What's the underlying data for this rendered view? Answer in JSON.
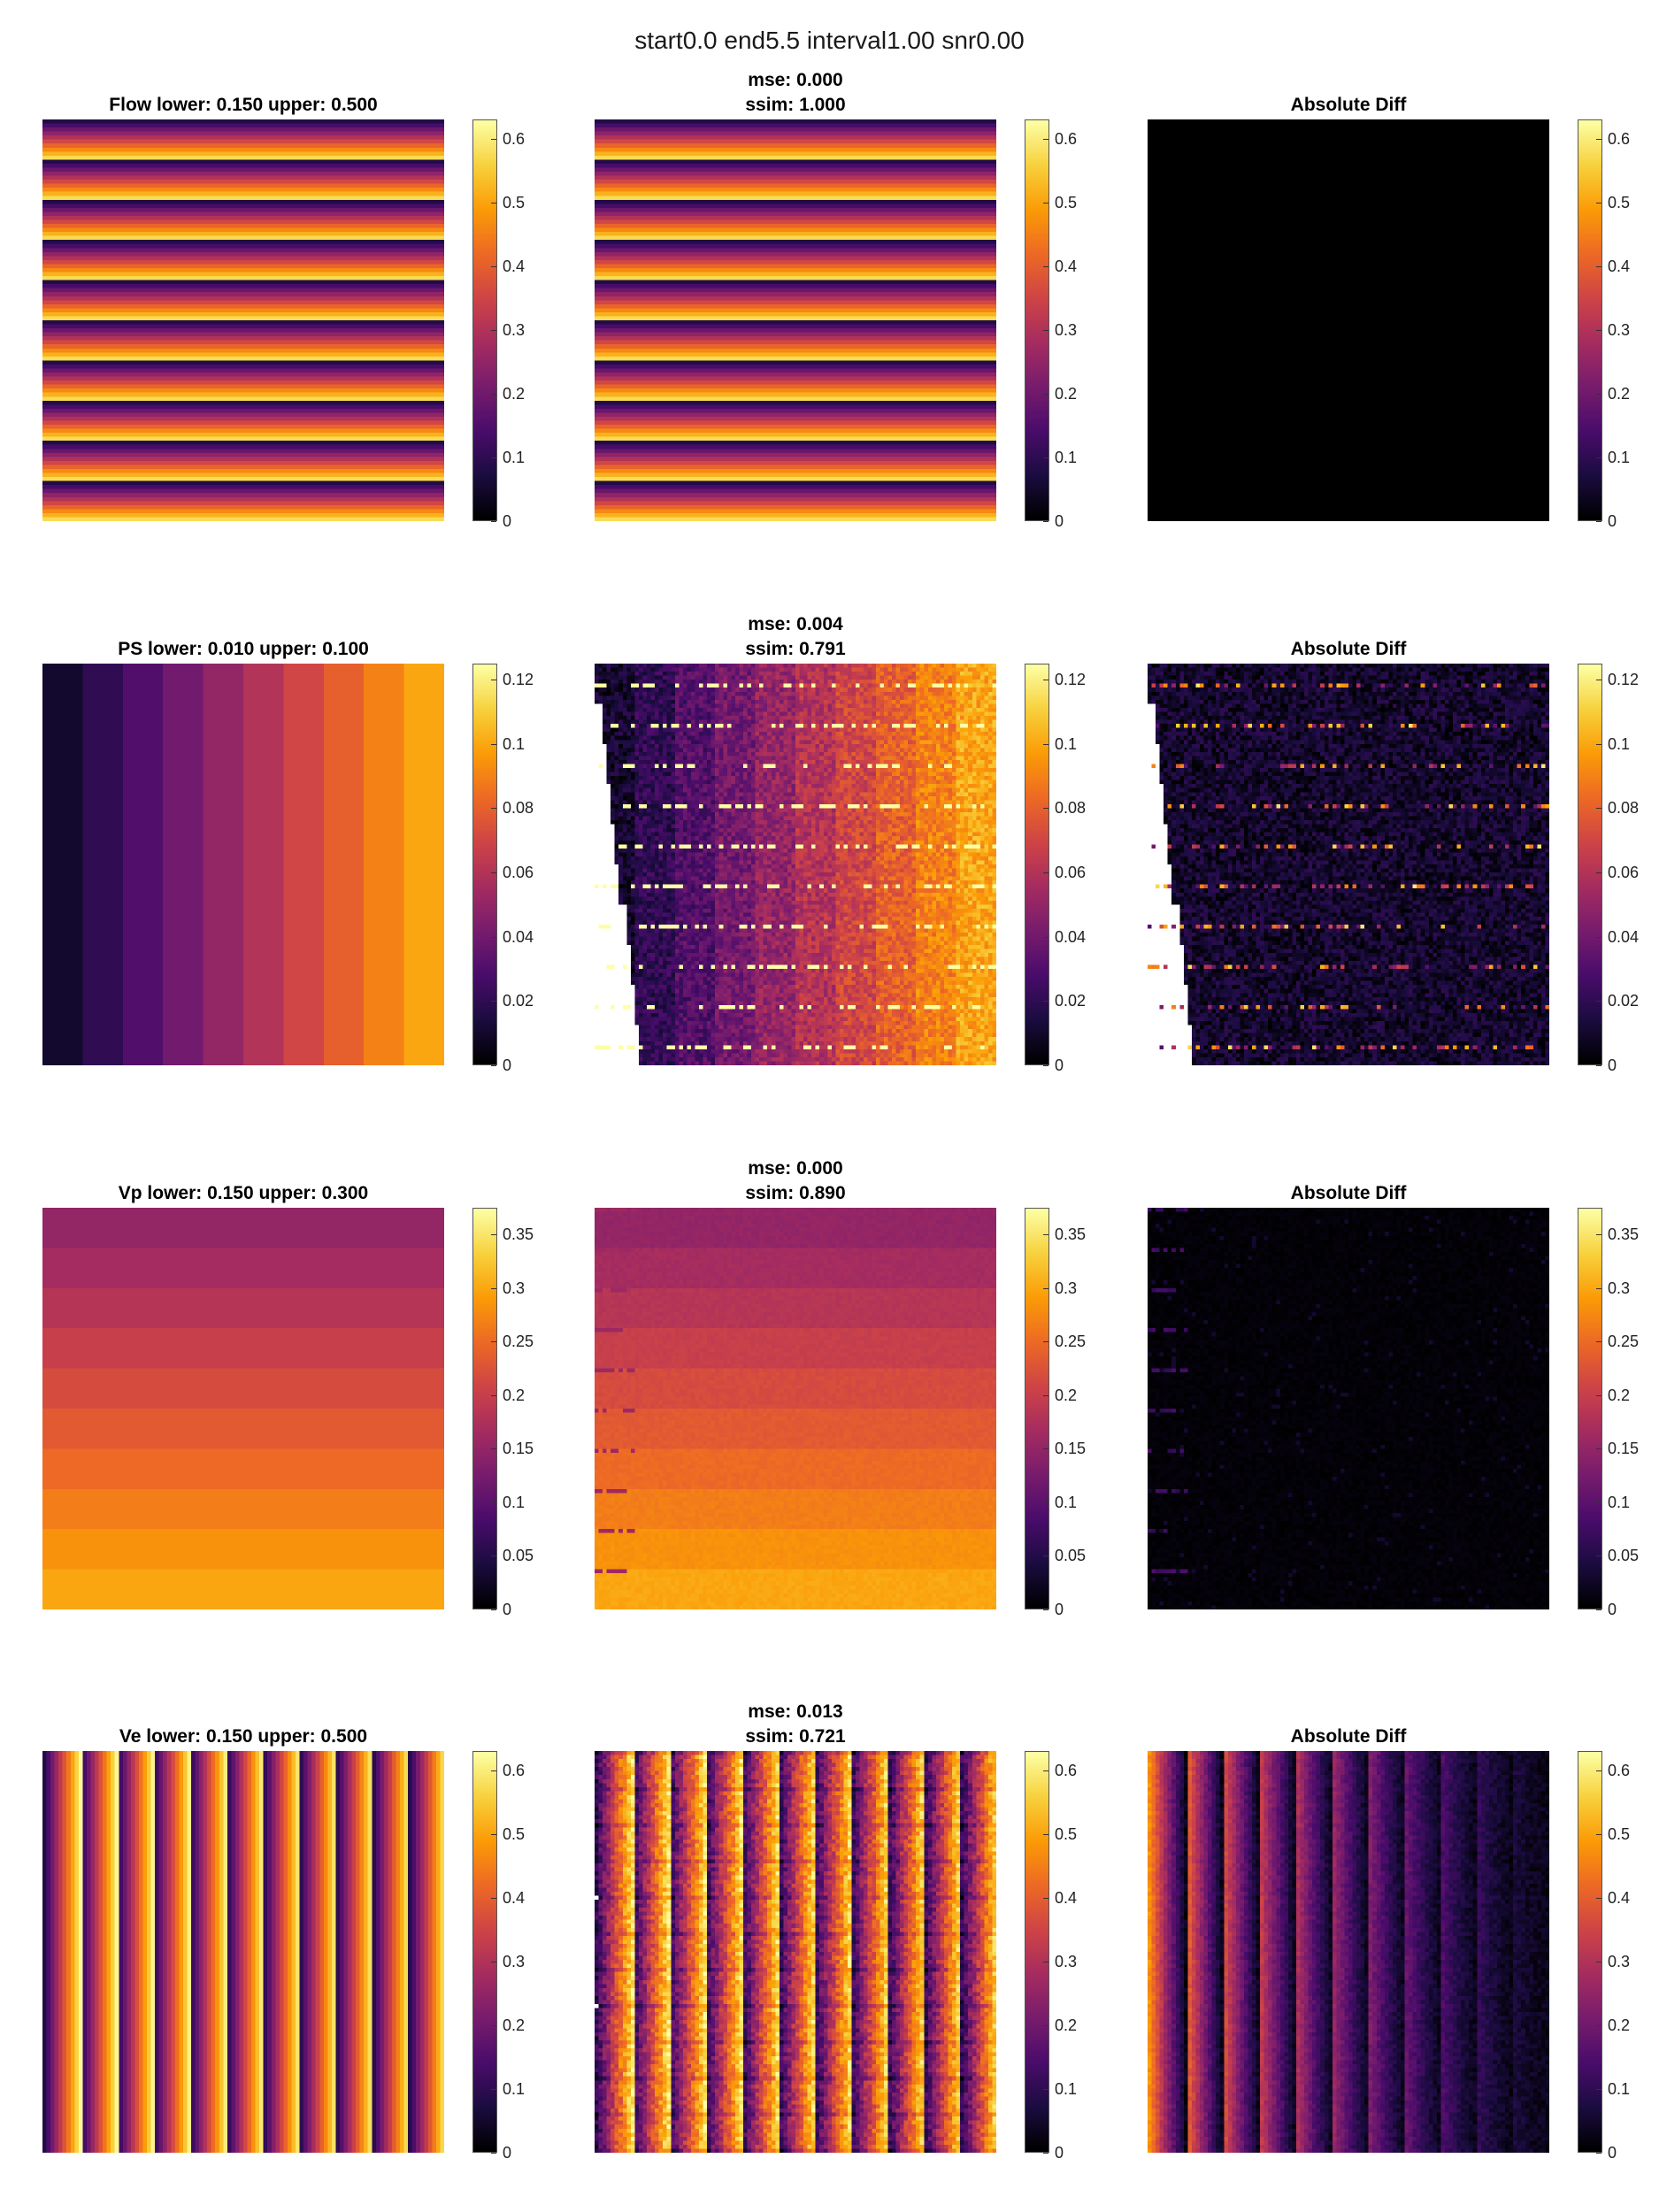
{
  "figure_title": "start0.0 end5.5 interval1.00 snr0.00",
  "colormap": [
    "#000000",
    "#1b0c41",
    "#4a0c6b",
    "#781c6d",
    "#a52c60",
    "#cf4446",
    "#ed6925",
    "#fb9b06",
    "#f7d13d",
    "#fcffa4"
  ],
  "chart_data": [
    {
      "row": 0,
      "col": 0,
      "type": "heatmap",
      "title": "Flow lower: 0.150 upper: 0.500",
      "pattern": "horizontal-stripes-gradient",
      "colorbar": {
        "ticks": [
          "0",
          "0.1",
          "0.2",
          "0.3",
          "0.4",
          "0.5",
          "0.6"
        ],
        "range": [
          0,
          0.63
        ]
      }
    },
    {
      "row": 0,
      "col": 1,
      "type": "heatmap",
      "title_lines": [
        "mse: 0.000",
        "ssim: 1.000"
      ],
      "pattern": "horizontal-stripes-gradient",
      "colorbar": {
        "ticks": [
          "0",
          "0.1",
          "0.2",
          "0.3",
          "0.4",
          "0.5",
          "0.6"
        ],
        "range": [
          0,
          0.63
        ]
      }
    },
    {
      "row": 0,
      "col": 2,
      "type": "heatmap",
      "title": "Absolute Diff",
      "pattern": "zero",
      "colorbar": {
        "ticks": [
          "0",
          "0.1",
          "0.2",
          "0.3",
          "0.4",
          "0.5",
          "0.6"
        ],
        "range": [
          0,
          0.63
        ]
      }
    },
    {
      "row": 1,
      "col": 0,
      "type": "heatmap",
      "title": "PS lower: 0.010 upper: 0.100",
      "pattern": "vertical-bands-10",
      "band_values": [
        0.01,
        0.02,
        0.03,
        0.04,
        0.05,
        0.06,
        0.07,
        0.08,
        0.09,
        0.1
      ],
      "colorbar": {
        "ticks": [
          "0",
          "0.02",
          "0.04",
          "0.06",
          "0.08",
          "0.1",
          "0.12"
        ],
        "range": [
          0,
          0.125
        ]
      }
    },
    {
      "row": 1,
      "col": 1,
      "type": "heatmap",
      "title_lines": [
        "mse: 0.004",
        "ssim: 0.791"
      ],
      "pattern": "vertical-bands-noisy",
      "colorbar": {
        "ticks": [
          "0",
          "0.02",
          "0.04",
          "0.06",
          "0.08",
          "0.1",
          "0.12"
        ],
        "range": [
          0,
          0.125
        ]
      }
    },
    {
      "row": 1,
      "col": 2,
      "type": "heatmap",
      "title": "Absolute Diff",
      "pattern": "diff-sparse",
      "colorbar": {
        "ticks": [
          "0",
          "0.02",
          "0.04",
          "0.06",
          "0.08",
          "0.1",
          "0.12"
        ],
        "range": [
          0,
          0.125
        ]
      }
    },
    {
      "row": 2,
      "col": 0,
      "type": "heatmap",
      "title": "Vp lower: 0.150 upper: 0.300",
      "pattern": "horizontal-bands-10",
      "band_values": [
        0.15,
        0.167,
        0.183,
        0.2,
        0.217,
        0.233,
        0.25,
        0.267,
        0.283,
        0.3
      ],
      "colorbar": {
        "ticks": [
          "0",
          "0.05",
          "0.1",
          "0.15",
          "0.2",
          "0.25",
          "0.3",
          "0.35"
        ],
        "range": [
          0,
          0.375
        ]
      }
    },
    {
      "row": 2,
      "col": 1,
      "type": "heatmap",
      "title_lines": [
        "mse: 0.000",
        "ssim: 0.890"
      ],
      "pattern": "horizontal-bands-noisy",
      "colorbar": {
        "ticks": [
          "0",
          "0.05",
          "0.1",
          "0.15",
          "0.2",
          "0.25",
          "0.3",
          "0.35"
        ],
        "range": [
          0,
          0.375
        ]
      }
    },
    {
      "row": 2,
      "col": 2,
      "type": "heatmap",
      "title": "Absolute Diff",
      "pattern": "diff-faint",
      "colorbar": {
        "ticks": [
          "0",
          "0.05",
          "0.1",
          "0.15",
          "0.2",
          "0.25",
          "0.3",
          "0.35"
        ],
        "range": [
          0,
          0.375
        ]
      }
    },
    {
      "row": 3,
      "col": 0,
      "type": "heatmap",
      "title": "Ve lower: 0.150 upper: 0.500",
      "pattern": "vertical-stripes-gradient",
      "colorbar": {
        "ticks": [
          "0",
          "0.1",
          "0.2",
          "0.3",
          "0.4",
          "0.5",
          "0.6"
        ],
        "range": [
          0,
          0.63
        ]
      }
    },
    {
      "row": 3,
      "col": 1,
      "type": "heatmap",
      "title_lines": [
        "mse: 0.013",
        "ssim: 0.721"
      ],
      "pattern": "vertical-stripes-noisy",
      "colorbar": {
        "ticks": [
          "0",
          "0.1",
          "0.2",
          "0.3",
          "0.4",
          "0.5",
          "0.6"
        ],
        "range": [
          0,
          0.63
        ]
      }
    },
    {
      "row": 3,
      "col": 2,
      "type": "heatmap",
      "title": "Absolute Diff",
      "pattern": "diff-blocks",
      "colorbar": {
        "ticks": [
          "0",
          "0.1",
          "0.2",
          "0.3",
          "0.4",
          "0.5",
          "0.6"
        ],
        "range": [
          0,
          0.63
        ]
      }
    }
  ]
}
